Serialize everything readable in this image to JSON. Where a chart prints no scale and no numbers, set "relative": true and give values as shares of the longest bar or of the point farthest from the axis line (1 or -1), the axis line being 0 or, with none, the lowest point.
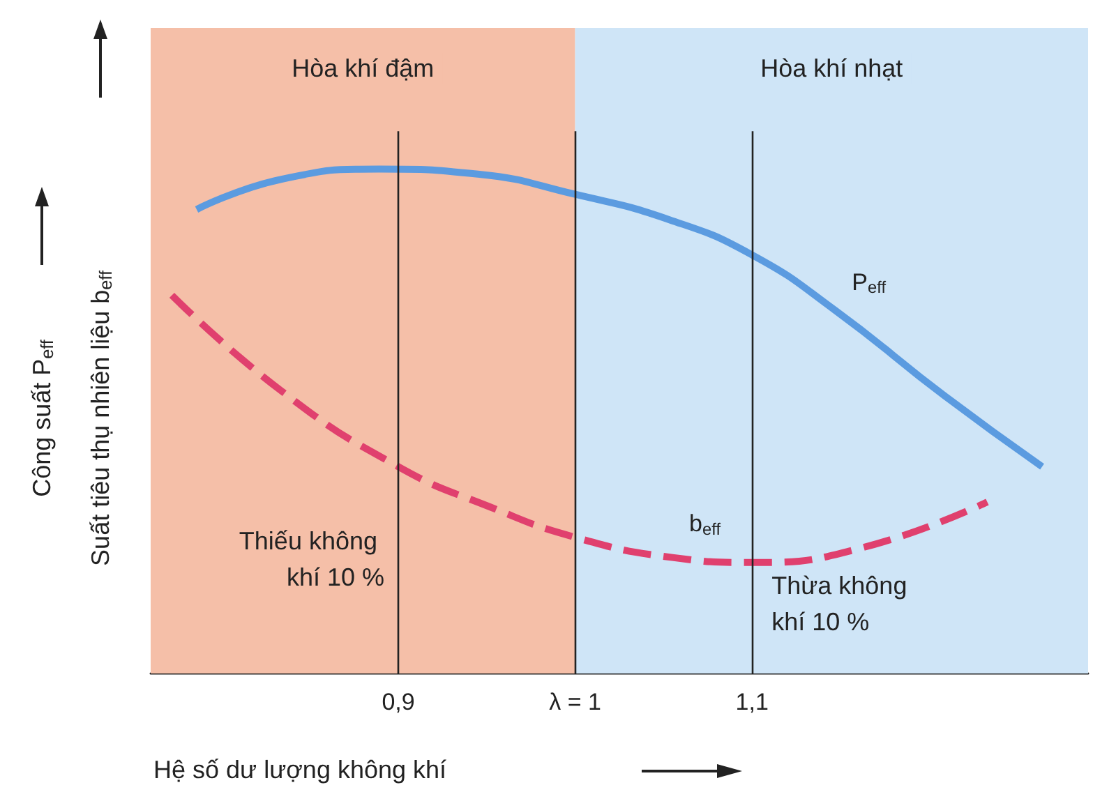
{
  "chart_data": {
    "type": "line",
    "relative": true,
    "xlabel": "Hệ số dư lượng không khí",
    "ylabel": "Công suất P$_{eff}$",
    "y2label": "Suất tiêu thụ nhiên liệu b$_{eff}$",
    "xlim": [
      0.76,
      1.29
    ],
    "xticks": [
      {
        "value": 0.9,
        "label": "0,9"
      },
      {
        "value": 1,
        "label": "λ = 1"
      },
      {
        "value": 1.1,
        "label": "1,1"
      }
    ],
    "series": [
      {
        "name": "P$_{eff}$",
        "color": "#5b9be0",
        "line_style": "solid",
        "x": [
          0.786,
          0.834,
          0.889,
          0.945,
          1.0,
          1.053,
          1.1,
          1.147,
          1.209,
          1.264
        ],
        "values": [
          0.92,
          0.98,
          1.0,
          0.99,
          0.95,
          0.9,
          0.83,
          0.72,
          0.55,
          0.41
        ]
      },
      {
        "name": "b$_{eff}$",
        "color": "#e0406e",
        "line_style": "dashed",
        "x": [
          0.772,
          0.834,
          0.9,
          0.952,
          1.0,
          1.055,
          1.1,
          1.163,
          1.233
        ],
        "values": [
          0.75,
          0.56,
          0.41,
          0.33,
          0.27,
          0.23,
          0.22,
          0.25,
          0.34
        ]
      }
    ],
    "bands": [
      {
        "axis": "x",
        "from": 0.76,
        "to": 1,
        "label": "Hòa khí đậm",
        "color": "#f5bfa8"
      },
      {
        "axis": "x",
        "from": 1,
        "to": 1.29,
        "label": "Hòa khí nhạt",
        "color": "#cfe5f7"
      }
    ],
    "ref_lines": [
      {
        "axis": "x",
        "value": 0.9,
        "label": "Thiếu không khí 10 %"
      },
      {
        "axis": "x",
        "value": 1,
        "label": null
      },
      {
        "axis": "x",
        "value": 1.1,
        "label": "Thừa không khí 10 %"
      }
    ],
    "grid": false,
    "marker": "none",
    "legend": false
  }
}
